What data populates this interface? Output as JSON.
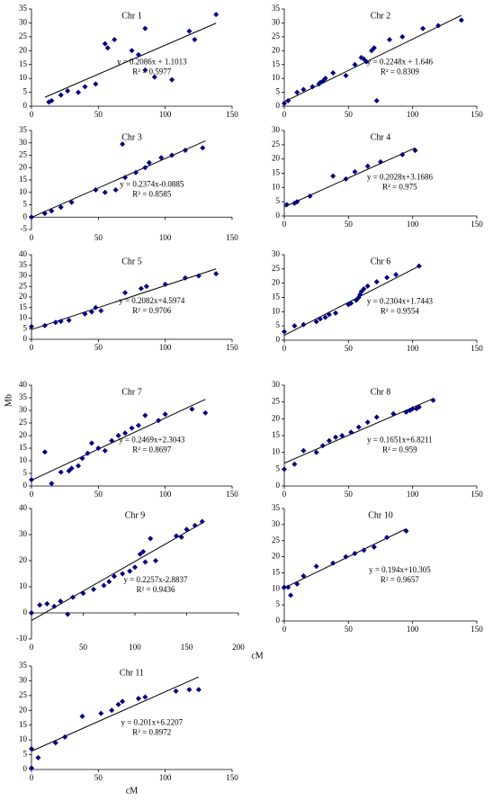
{
  "ylabel": "Mb",
  "xlabel": "cM",
  "chart_data": [
    {
      "type": "scatter",
      "title": "Chr 1",
      "color": "#000080",
      "xlim": [
        0,
        150
      ],
      "xticks": [
        0,
        50,
        100,
        150
      ],
      "ylim": [
        0,
        35
      ],
      "yticks": [
        0,
        5,
        10,
        15,
        20,
        25,
        30,
        35
      ],
      "x": [
        13,
        15,
        22,
        27,
        35,
        40,
        48,
        55,
        57,
        62,
        75,
        80,
        85,
        85,
        92,
        105,
        118,
        122,
        138
      ],
      "y": [
        1.5,
        2,
        4,
        5.5,
        5,
        7,
        8,
        22.5,
        21,
        24,
        20,
        18.5,
        28,
        13,
        10.5,
        9.5,
        27,
        24,
        33
      ],
      "trendline": {
        "x": [
          10,
          138
        ],
        "y": [
          3.2,
          29.9
        ]
      },
      "equation": "y = 0.2086x + 1.1013",
      "r2": "R² = 0.5977"
    },
    {
      "type": "scatter",
      "title": "Chr 2",
      "color": "#000080",
      "xlim": [
        0,
        150
      ],
      "xticks": [
        0,
        50,
        100,
        150
      ],
      "ylim": [
        0,
        35
      ],
      "yticks": [
        0,
        5,
        10,
        15,
        20,
        25,
        30,
        35
      ],
      "x": [
        0,
        3,
        10,
        15,
        22,
        27,
        28,
        30,
        32,
        38,
        48,
        55,
        60,
        62,
        64,
        68,
        70,
        72,
        82,
        92,
        108,
        120,
        138
      ],
      "y": [
        1,
        2,
        5,
        6,
        7,
        8,
        8.5,
        9,
        10,
        12,
        11,
        15,
        17.5,
        17,
        16,
        20,
        21,
        2,
        24,
        25,
        28,
        29,
        31
      ],
      "trendline": {
        "x": [
          0,
          138
        ],
        "y": [
          1.6,
          32.7
        ]
      },
      "equation": "y = 0.2248x + 1.646",
      "r2": "R² = 0.8309"
    },
    {
      "type": "scatter",
      "title": "Chr 3",
      "color": "#000080",
      "xlim": [
        0,
        150
      ],
      "xticks": [
        0,
        50,
        100,
        150
      ],
      "ylim": [
        -5,
        35
      ],
      "yticks": [
        -5,
        0,
        5,
        10,
        15,
        20,
        25,
        30,
        35
      ],
      "x": [
        0,
        10,
        15,
        22,
        30,
        48,
        55,
        63,
        68,
        70,
        78,
        85,
        88,
        97,
        105,
        115,
        128
      ],
      "y": [
        0,
        1.5,
        2.5,
        4,
        6,
        11,
        10,
        11,
        29.5,
        16,
        18,
        20,
        22,
        24,
        25,
        27,
        28
      ],
      "trendline": {
        "x": [
          0,
          130
        ],
        "y": [
          -0.1,
          30.8
        ]
      },
      "equation": "y = 0.2374x-0.0885",
      "r2": "R² = 0.8585"
    },
    {
      "type": "scatter",
      "title": "Chr 4",
      "color": "#000080",
      "xlim": [
        0,
        150
      ],
      "xticks": [
        0,
        50,
        100,
        150
      ],
      "ylim": [
        0,
        30
      ],
      "yticks": [
        0,
        5,
        10,
        15,
        20,
        25,
        30
      ],
      "x": [
        2,
        8,
        10,
        20,
        38,
        48,
        55,
        65,
        75,
        92,
        102
      ],
      "y": [
        4,
        4.5,
        5,
        7,
        14,
        13,
        15.5,
        17.5,
        19,
        21.5,
        23
      ],
      "trendline": {
        "x": [
          0,
          102
        ],
        "y": [
          3.2,
          23.9
        ]
      },
      "equation": "y = 0.2028x+3.1686",
      "r2": "R² = 0.975"
    },
    {
      "type": "scatter",
      "title": "Chr 5",
      "color": "#000080",
      "xlim": [
        0,
        150
      ],
      "xticks": [
        0,
        50,
        100,
        150
      ],
      "ylim": [
        0,
        40
      ],
      "yticks": [
        0,
        5,
        10,
        15,
        20,
        25,
        30,
        35,
        40
      ],
      "x": [
        0,
        10,
        18,
        22,
        28,
        40,
        45,
        48,
        52,
        70,
        82,
        86,
        100,
        115,
        125,
        138
      ],
      "y": [
        6,
        6.5,
        8,
        8.5,
        9,
        12,
        13,
        15,
        13.5,
        22,
        24,
        25,
        26,
        29,
        30,
        31
      ],
      "trendline": {
        "x": [
          0,
          138
        ],
        "y": [
          4.6,
          33.3
        ]
      },
      "equation": "y = 0.2082x+4.5974",
      "r2": "R² = 0.9706"
    },
    {
      "type": "scatter",
      "title": "Chr 6",
      "color": "#000080",
      "xlim": [
        0,
        150
      ],
      "xticks": [
        0,
        50,
        100,
        150
      ],
      "ylim": [
        0,
        30
      ],
      "yticks": [
        0,
        5,
        10,
        15,
        20,
        25,
        30
      ],
      "x": [
        0,
        8,
        15,
        25,
        28,
        32,
        35,
        40,
        50,
        52,
        56,
        58,
        59,
        60,
        62,
        65,
        72,
        80,
        87,
        105
      ],
      "y": [
        3,
        5,
        5.5,
        6.5,
        7.5,
        8,
        9,
        9.5,
        12.5,
        13,
        14,
        15,
        16,
        17,
        18,
        19,
        20.5,
        22,
        23,
        26
      ],
      "trendline": {
        "x": [
          0,
          105
        ],
        "y": [
          1.7,
          26
        ]
      },
      "equation": "y = 0.2304x+1.7443",
      "r2": "R² = 0.9554"
    },
    {
      "type": "scatter",
      "title": "Chr 7",
      "color": "#000080",
      "xlim": [
        0,
        150
      ],
      "xticks": [
        0,
        50,
        100,
        150
      ],
      "ylim": [
        0,
        40
      ],
      "yticks": [
        0,
        5,
        10,
        15,
        20,
        25,
        30,
        35,
        40
      ],
      "x": [
        0,
        10,
        15,
        22,
        28,
        30,
        35,
        38,
        42,
        45,
        50,
        55,
        60,
        65,
        70,
        75,
        80,
        85,
        95,
        100,
        120,
        130
      ],
      "y": [
        2.5,
        13.5,
        1,
        5.5,
        6,
        7,
        8,
        11,
        13,
        17,
        15,
        14,
        18,
        20,
        21,
        23,
        24,
        28,
        26,
        28.5,
        30.5,
        29
      ],
      "trendline": {
        "x": [
          0,
          130
        ],
        "y": [
          2.3,
          34.4
        ]
      },
      "equation": "y = 0.2469x+2.3043",
      "r2": "R² = 0.8697"
    },
    {
      "type": "scatter",
      "title": "Chr 8",
      "color": "#000080",
      "xlim": [
        0,
        150
      ],
      "xticks": [
        0,
        50,
        100,
        150
      ],
      "ylim": [
        0,
        30
      ],
      "yticks": [
        0,
        5,
        10,
        15,
        20,
        25,
        30
      ],
      "x": [
        0,
        8,
        15,
        25,
        30,
        35,
        40,
        45,
        52,
        58,
        65,
        72,
        85,
        95,
        98,
        100,
        103,
        105,
        116
      ],
      "y": [
        5,
        6.5,
        10.5,
        10,
        12,
        13.5,
        14.5,
        15,
        16,
        17.5,
        19,
        20.5,
        21.5,
        22,
        22.5,
        23,
        23,
        23.5,
        25.5
      ],
      "trendline": {
        "x": [
          0,
          116
        ],
        "y": [
          6.8,
          26
        ]
      },
      "equation": "y = 0.1651x+6.8211",
      "r2": "R² = 0.959"
    },
    {
      "type": "scatter",
      "title": "Chr 9",
      "color": "#000080",
      "xlim": [
        0,
        200
      ],
      "xticks": [
        0,
        50,
        100,
        150,
        200
      ],
      "ylim": [
        -10,
        40
      ],
      "yticks": [
        -10,
        0,
        10,
        20,
        30,
        40
      ],
      "x": [
        0,
        8,
        15,
        22,
        28,
        35,
        40,
        50,
        60,
        70,
        75,
        80,
        88,
        95,
        100,
        105,
        108,
        110,
        115,
        120,
        140,
        145,
        150,
        158,
        165
      ],
      "y": [
        0,
        3,
        3.5,
        2.5,
        4.5,
        -0.5,
        6,
        7.5,
        9,
        10.5,
        12,
        14,
        15,
        16,
        17.5,
        22.5,
        23.5,
        19.5,
        28.5,
        20,
        29.5,
        29,
        32,
        33.5,
        35
      ],
      "trendline": {
        "x": [
          0,
          165
        ],
        "y": [
          -2.9,
          34.4
        ]
      },
      "equation": "y = 0.2257x-2.8837",
      "r2": "R² = 0.9436"
    },
    {
      "type": "scatter",
      "title": "Chr 10",
      "color": "#000080",
      "xlim": [
        0,
        150
      ],
      "xticks": [
        0,
        50,
        100,
        150
      ],
      "ylim": [
        0,
        35
      ],
      "yticks": [
        0,
        5,
        10,
        15,
        20,
        25,
        30,
        35
      ],
      "x": [
        0,
        3,
        5,
        10,
        15,
        25,
        38,
        48,
        55,
        62,
        70,
        80,
        95
      ],
      "y": [
        10.5,
        10.5,
        8,
        11.5,
        14,
        17,
        18,
        20,
        21,
        22,
        23,
        26,
        28
      ],
      "trendline": {
        "x": [
          0,
          95
        ],
        "y": [
          10.3,
          28.7
        ]
      },
      "equation": "y = 0.194x+10.305",
      "r2": "R² = 0.9657"
    },
    {
      "type": "scatter",
      "title": "Chr 11",
      "color": "#000080",
      "xlim": [
        0,
        150
      ],
      "xticks": [
        0,
        50,
        100,
        150
      ],
      "ylim": [
        0,
        35
      ],
      "yticks": [
        0,
        5,
        10,
        15,
        20,
        25,
        30,
        35
      ],
      "x": [
        0,
        0,
        5,
        18,
        25,
        38,
        52,
        60,
        65,
        68,
        80,
        85,
        108,
        118,
        125
      ],
      "y": [
        0.5,
        7,
        4,
        9,
        11,
        18,
        19,
        20,
        22,
        23,
        24,
        24.5,
        26.5,
        27,
        27
      ],
      "trendline": {
        "x": [
          0,
          125
        ],
        "y": [
          6.2,
          31.3
        ]
      },
      "equation": "y = 0.201x+6.2207",
      "r2": "R² = 0.8972",
      "xlabel": "cM"
    }
  ]
}
